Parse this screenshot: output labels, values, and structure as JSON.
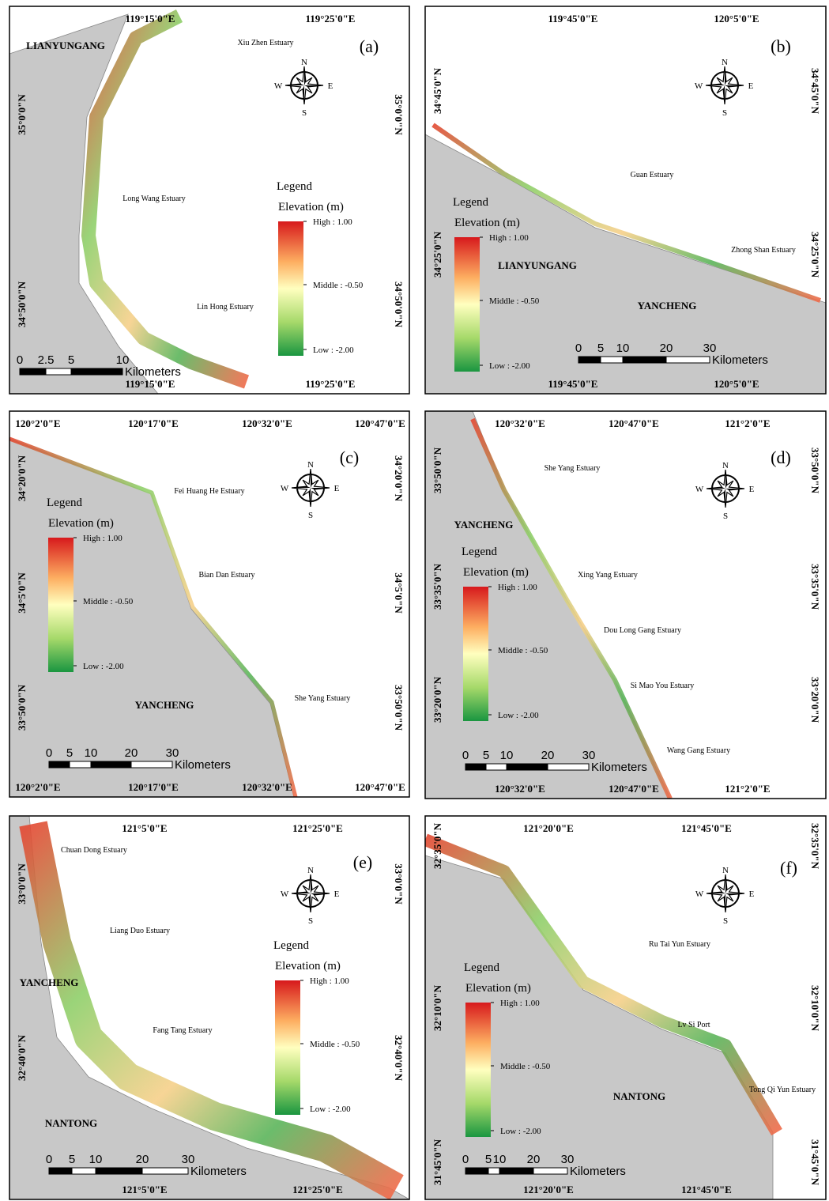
{
  "compass": [
    "N",
    "W",
    "E",
    "S"
  ],
  "legend": {
    "title": "Legend",
    "subtitle": "Elevation (m)",
    "high": "High : 1.00",
    "middle": "Middle : -0.50",
    "low": "Low : -2.00"
  },
  "scale_unit": "Kilometers",
  "panels": [
    {
      "label": "(a)",
      "lon_labels": [
        "119°15'0\"E",
        "119°25'0\"E"
      ],
      "lat_labels": [
        "35°0'0\"N",
        "34°50'0\"N"
      ],
      "places": [
        "LIANYUNGANG"
      ],
      "estuaries": [
        "Xiu Zhen Estuary",
        "Long Wang Estuary",
        "Lin Hong Estuary"
      ],
      "scale_ticks": [
        "0",
        "2.5",
        "5",
        "10"
      ]
    },
    {
      "label": "(b)",
      "lon_labels": [
        "119°45'0\"E",
        "120°5'0\"E"
      ],
      "lat_labels": [
        "34°45'0\"N",
        "34°25'0\"N"
      ],
      "places": [
        "LIANYUNGANG",
        "YANCHENG"
      ],
      "estuaries": [
        "Guan Estuary",
        "Zhong Shan Estuary"
      ],
      "scale_ticks": [
        "0",
        "5",
        "10",
        "20",
        "30"
      ]
    },
    {
      "label": "(c)",
      "lon_labels": [
        "120°2'0\"E",
        "120°17'0\"E",
        "120°32'0\"E",
        "120°47'0\"E"
      ],
      "lat_labels": [
        "34°20'0\"N",
        "34°5'0\"N",
        "33°50'0\"N"
      ],
      "places": [
        "YANCHENG"
      ],
      "estuaries": [
        "Fei Huang He Estuary",
        "Bian Dan Estuary",
        "She Yang Estuary"
      ],
      "scale_ticks": [
        "0",
        "5",
        "10",
        "20",
        "30"
      ]
    },
    {
      "label": "(d)",
      "lon_labels": [
        "120°32'0\"E",
        "120°47'0\"E",
        "121°2'0\"E"
      ],
      "lat_labels": [
        "33°50'0\"N",
        "33°35'0\"N",
        "33°20'0\"N"
      ],
      "places": [
        "YANCHENG"
      ],
      "estuaries": [
        "She Yang Estuary",
        "Xing Yang Estuary",
        "Dou Long Gang Estuary",
        "Si Mao You Estuary",
        "Wang Gang Estuary"
      ],
      "scale_ticks": [
        "0",
        "5",
        "10",
        "20",
        "30"
      ]
    },
    {
      "label": "(e)",
      "lon_labels": [
        "121°5'0\"E",
        "121°25'0\"E"
      ],
      "lat_labels": [
        "33°0'0\"N",
        "32°40'0\"N"
      ],
      "places": [
        "YANCHENG",
        "NANTONG"
      ],
      "estuaries": [
        "Chuan Dong Estuary",
        "Liang Duo Estuary",
        "Fang Tang Estuary"
      ],
      "scale_ticks": [
        "0",
        "5",
        "10",
        "20",
        "30"
      ]
    },
    {
      "label": "(f)",
      "lon_labels": [
        "121°20'0\"E",
        "121°45'0\"E"
      ],
      "lat_labels": [
        "32°35'0\"N",
        "32°10'0\"N",
        "31°45'0\"N"
      ],
      "places": [
        "NANTONG"
      ],
      "estuaries": [
        "Ru Tai Yun Estuary",
        "Lv Si Port",
        "Tong Qi Yun Estuary"
      ],
      "scale_ticks": [
        "0",
        "5",
        "10",
        "20",
        "30"
      ]
    }
  ]
}
